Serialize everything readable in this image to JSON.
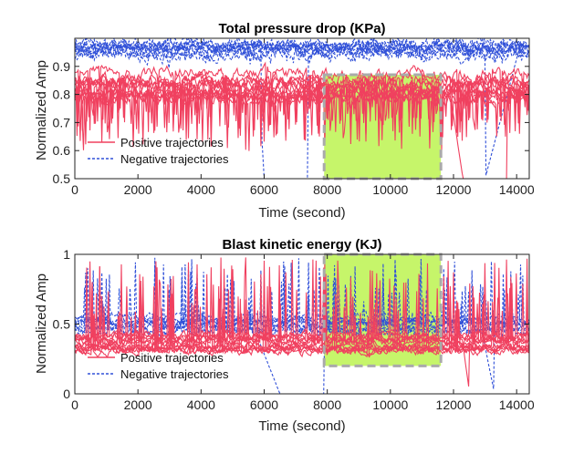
{
  "chart_data": [
    {
      "type": "line",
      "title": "Total pressure drop (KPa)",
      "xlabel": "Time (second)",
      "ylabel": "Normalized Amp",
      "xlim": [
        0,
        14400
      ],
      "ylim": [
        0.5,
        1.0
      ],
      "xticks": [
        0,
        2000,
        4000,
        6000,
        8000,
        10000,
        12000,
        14000
      ],
      "yticks": [
        0.5,
        0.6,
        0.7,
        0.8,
        0.9
      ],
      "ytick_labels": [
        "0.5",
        "0.6",
        "0.7",
        "0.8",
        "0.9"
      ],
      "highlight_region": {
        "x": [
          7900,
          11600
        ],
        "y": [
          0.5,
          0.87
        ],
        "fill": "#c6f56a",
        "border": "#aaaaaa"
      },
      "legend": {
        "position": "bottom-left",
        "entries": [
          "Positive trajectories",
          "Negative trajectories"
        ]
      },
      "series": [
        {
          "name": "Positive trajectories",
          "style": "solid",
          "color": "#f0405f",
          "base_range": [
            0.78,
            0.89
          ],
          "spike_depth": 0.18,
          "count": 12
        },
        {
          "name": "Negative trajectories",
          "style": "dashed",
          "color": "#3050d8",
          "base_range": [
            0.94,
            0.98
          ],
          "spike_depth": 0.04,
          "count": 10
        }
      ],
      "events": [
        {
          "series": "Negative trajectories",
          "description": "drop",
          "x": [
            5900,
            6000
          ],
          "y": [
            0.7,
            0.5
          ]
        },
        {
          "series": "Negative trajectories",
          "description": "recovery",
          "x": [
            13000,
            14100
          ],
          "y": [
            0.5,
            0.97
          ]
        },
        {
          "series": "Positive trajectories",
          "description": "drop",
          "x": [
            11900,
            12300
          ],
          "y": [
            0.8,
            0.5
          ]
        }
      ]
    },
    {
      "type": "line",
      "title": "Blast kinetic energy (KJ)",
      "xlabel": "Time (second)",
      "ylabel": "Normalized Amp",
      "xlim": [
        0,
        14400
      ],
      "ylim": [
        0,
        1.0
      ],
      "xticks": [
        0,
        2000,
        4000,
        6000,
        8000,
        10000,
        12000,
        14000
      ],
      "yticks": [
        0,
        0.5,
        1
      ],
      "ytick_labels": [
        "0",
        "0.5",
        "1"
      ],
      "highlight_region": {
        "x": [
          7900,
          11600
        ],
        "y": [
          0.2,
          1.0
        ],
        "fill": "#c6f56a",
        "border": "#aaaaaa"
      },
      "legend": {
        "position": "bottom-left",
        "entries": [
          "Positive trajectories",
          "Negative trajectories"
        ]
      },
      "series": [
        {
          "name": "Positive trajectories",
          "style": "solid",
          "color": "#f0405f",
          "base_range": [
            0.3,
            0.42
          ],
          "peak_level": 0.98,
          "count": 12
        },
        {
          "name": "Negative trajectories",
          "style": "dashed",
          "color": "#3050d8",
          "base_range": [
            0.45,
            0.55
          ],
          "peak_level": 0.98,
          "count": 10
        }
      ],
      "events": [
        {
          "series": "Negative trajectories",
          "description": "drop to zero",
          "x": [
            5800,
            6500
          ],
          "y": [
            0.4,
            0.0
          ]
        },
        {
          "series": "Positive trajectories",
          "description": "dip",
          "x": [
            12300,
            12500
          ],
          "y": [
            0.35,
            0.02
          ]
        },
        {
          "series": "Negative trajectories",
          "description": "dip",
          "x": [
            12900,
            13300
          ],
          "y": [
            0.45,
            0.0
          ]
        }
      ]
    }
  ]
}
